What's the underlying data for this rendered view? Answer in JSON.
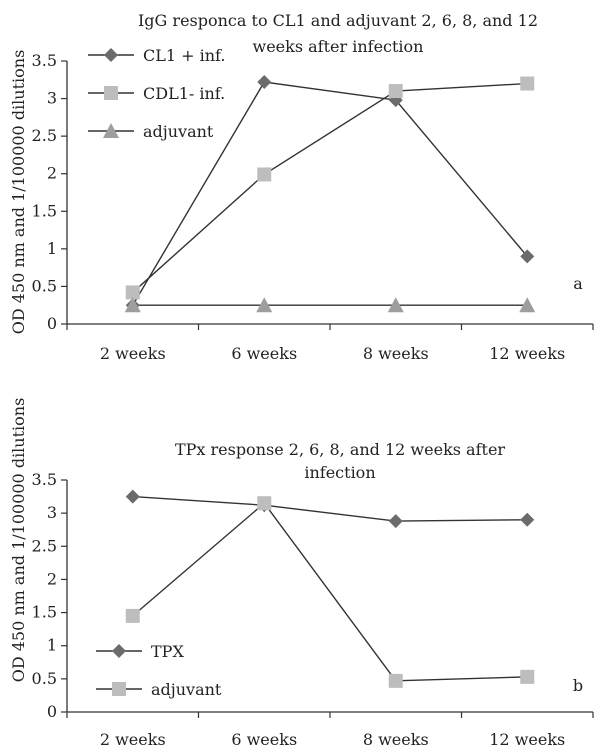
{
  "chart_data": [
    {
      "type": "line",
      "panel_label": "a",
      "title_lines": [
        "IgG responca to CL1 and adjuvant 2, 6, 8, and 12",
        "weeks after infection"
      ],
      "xlabel": "",
      "ylabel": "OD 450 nm and 1/100000 dilutions",
      "categories": [
        "2 weeks",
        "6 weeks",
        "8 weeks",
        "12 weeks"
      ],
      "ylim": [
        0,
        3.5
      ],
      "yticks": [
        "0",
        "0.5",
        "1",
        "1.5",
        "2",
        "2.5",
        "3",
        "3.5"
      ],
      "grid": false,
      "legend_position": "top-left",
      "series": [
        {
          "name": "CL1 + inf.",
          "marker": "diamond",
          "color": "#6b6b6b",
          "values": [
            0.25,
            3.22,
            2.98,
            0.9
          ]
        },
        {
          "name": "CDL1- inf.",
          "marker": "square",
          "color": "#bdbdbd",
          "values": [
            0.42,
            1.99,
            3.1,
            3.2
          ]
        },
        {
          "name": "adjuvant",
          "marker": "triangle",
          "color": "#9e9e9e",
          "values": [
            0.25,
            0.25,
            0.25,
            0.25
          ]
        }
      ]
    },
    {
      "type": "line",
      "panel_label": "b",
      "title_lines": [
        "TPx response 2, 6, 8, and 12 weeks after",
        "infection"
      ],
      "xlabel": "",
      "ylabel": "OD 450 nm and 1/100000 dilutions",
      "categories": [
        "2 weeks",
        "6 weeks",
        "8 weeks",
        "12 weeks"
      ],
      "ylim": [
        0,
        3.5
      ],
      "yticks": [
        "0",
        "0.5",
        "1",
        "1.5",
        "2",
        "2.5",
        "3",
        "3.5"
      ],
      "grid": false,
      "legend_position": "bottom-left",
      "series": [
        {
          "name": "TPX",
          "marker": "diamond",
          "color": "#6b6b6b",
          "values": [
            3.25,
            3.12,
            2.88,
            2.9
          ]
        },
        {
          "name": "adjuvant",
          "marker": "square",
          "color": "#bdbdbd",
          "values": [
            1.45,
            3.15,
            0.47,
            0.53
          ]
        }
      ]
    }
  ]
}
